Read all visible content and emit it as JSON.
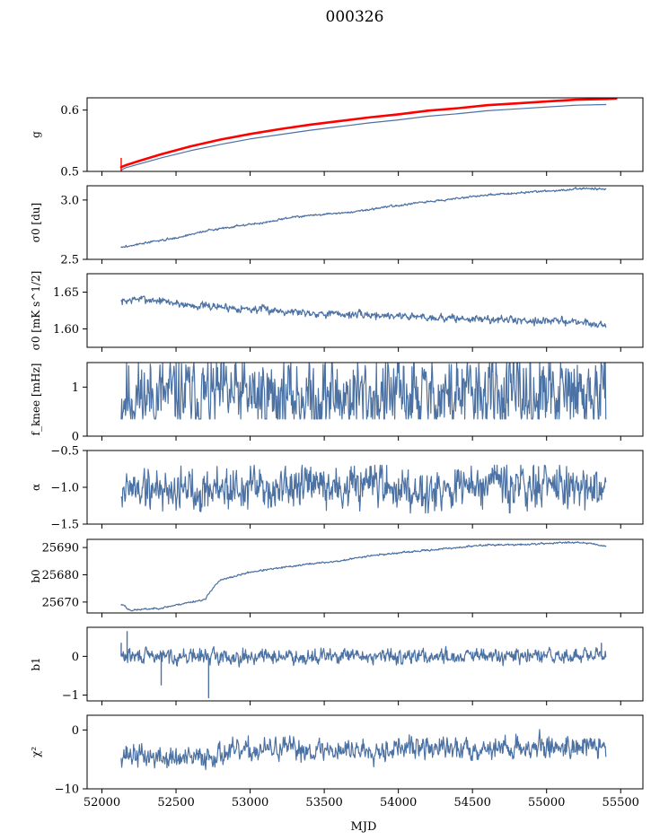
{
  "title": "000326",
  "xlabel": "MJD",
  "colors": {
    "primary": "#4c72a4",
    "highlight": "#ff0000"
  },
  "chart_data": [
    {
      "type": "line",
      "ylabel": "g",
      "xlim": [
        51900,
        55650
      ],
      "ylim": [
        0.5,
        0.62
      ],
      "yticks": [
        0.5,
        0.6
      ],
      "ytick_labels": [
        "0.5",
        "0.6"
      ],
      "xtick_labels_shown": false,
      "series": [
        {
          "name": "g",
          "color": "#4c72a4",
          "width": 1.2,
          "x": [
            52130,
            52160,
            52250,
            52400,
            52600,
            52800,
            53000,
            53200,
            53400,
            53600,
            53800,
            54000,
            54200,
            54400,
            54600,
            54800,
            55000,
            55200,
            55400
          ],
          "y": [
            0.502,
            0.506,
            0.512,
            0.522,
            0.534,
            0.544,
            0.553,
            0.56,
            0.567,
            0.573,
            0.579,
            0.584,
            0.59,
            0.594,
            0.599,
            0.602,
            0.605,
            0.608,
            0.609
          ]
        },
        {
          "name": "g-model",
          "color": "#ff0000",
          "width": 2.6,
          "x": [
            52130,
            52160,
            52250,
            52400,
            52600,
            52800,
            53000,
            53200,
            53400,
            53600,
            53800,
            54000,
            54200,
            54400,
            54600,
            54800,
            55000,
            55200,
            55400,
            55470
          ],
          "y": [
            0.507,
            0.51,
            0.517,
            0.528,
            0.541,
            0.552,
            0.561,
            0.569,
            0.576,
            0.582,
            0.588,
            0.593,
            0.599,
            0.603,
            0.608,
            0.611,
            0.614,
            0.617,
            0.618,
            0.619
          ]
        }
      ],
      "spikes": [
        {
          "x": 52130,
          "y0": 0.5,
          "y1": 0.522,
          "color": "#ff0000"
        }
      ]
    },
    {
      "type": "line",
      "ylabel": "σ0 [du]",
      "xlim": [
        51900,
        55650
      ],
      "ylim": [
        2.5,
        3.12
      ],
      "yticks": [
        2.5,
        3.0
      ],
      "ytick_labels": [
        "2.5",
        "3.0"
      ],
      "xtick_labels_shown": false,
      "series": [
        {
          "name": "sigma0_du",
          "color": "#4c72a4",
          "width": 1.2,
          "noise": 0.004,
          "seed": 3,
          "x": [
            52130,
            52300,
            52500,
            52700,
            52900,
            53100,
            53300,
            53500,
            53700,
            53900,
            54100,
            54300,
            54500,
            54700,
            54900,
            55100,
            55250,
            55400
          ],
          "y": [
            2.6,
            2.64,
            2.68,
            2.74,
            2.78,
            2.81,
            2.86,
            2.88,
            2.9,
            2.94,
            2.97,
            3.0,
            3.03,
            3.05,
            3.07,
            3.08,
            3.1,
            3.09
          ]
        }
      ]
    },
    {
      "type": "line",
      "ylabel": "σ0 [mK s^1/2]",
      "xlim": [
        51900,
        55650
      ],
      "ylim": [
        1.575,
        1.675
      ],
      "yticks": [
        1.6,
        1.65
      ],
      "ytick_labels": [
        "1.60",
        "1.65"
      ],
      "xtick_labels_shown": false,
      "series": [
        {
          "name": "sigma0_mK",
          "color": "#4c72a4",
          "width": 1.2,
          "noise": 0.0025,
          "seed": 7,
          "x": [
            52130,
            52250,
            52400,
            52600,
            52800,
            53000,
            53200,
            53400,
            53600,
            53800,
            54000,
            54200,
            54400,
            54600,
            54800,
            55000,
            55200,
            55400
          ],
          "y": [
            1.637,
            1.641,
            1.638,
            1.632,
            1.63,
            1.627,
            1.625,
            1.622,
            1.62,
            1.619,
            1.618,
            1.616,
            1.614,
            1.613,
            1.612,
            1.611,
            1.61,
            1.605
          ]
        }
      ]
    },
    {
      "type": "line",
      "ylabel": "f_knee [mHz]",
      "xlim": [
        51900,
        55650
      ],
      "ylim": [
        0,
        1.5
      ],
      "yticks": [
        0,
        1
      ],
      "ytick_labels": [
        "0",
        "1"
      ],
      "xtick_labels_shown": false,
      "series": [
        {
          "name": "fknee",
          "color": "#4c72a4",
          "width": 1.2,
          "noise": 0.38,
          "seed": 11,
          "noise_lo": 0.35,
          "noise_hi": 1.5,
          "x": [
            52130,
            55400
          ],
          "y": [
            0.82,
            0.82
          ]
        }
      ]
    },
    {
      "type": "line",
      "ylabel": "α",
      "xlim": [
        51900,
        55650
      ],
      "ylim": [
        -1.5,
        -0.5
      ],
      "yticks": [
        -1.5,
        -1.0,
        -0.5
      ],
      "ytick_labels": [
        "−1.5",
        "−1.0",
        "−0.5"
      ],
      "xtick_labels_shown": false,
      "series": [
        {
          "name": "alpha",
          "color": "#4c72a4",
          "width": 1.2,
          "noise": 0.14,
          "seed": 19,
          "noise_lo": -1.35,
          "noise_hi": -0.7,
          "x": [
            52130,
            55400
          ],
          "y": [
            -1.02,
            -1.0
          ]
        }
      ]
    },
    {
      "type": "line",
      "ylabel": "b0",
      "xlim": [
        51900,
        55650
      ],
      "ylim": [
        25666,
        25693
      ],
      "yticks": [
        25670,
        25680,
        25690
      ],
      "ytick_labels": [
        "25670",
        "25680",
        "25690"
      ],
      "xtick_labels_shown": false,
      "series": [
        {
          "name": "b0",
          "color": "#4c72a4",
          "width": 1.2,
          "noise": 0.15,
          "seed": 23,
          "x": [
            52130,
            52150,
            52170,
            52200,
            52400,
            52600,
            52700,
            52720,
            52760,
            52800,
            53000,
            53200,
            53400,
            53600,
            53800,
            54000,
            54200,
            54400,
            54600,
            54800,
            55000,
            55200,
            55300,
            55400
          ],
          "y": [
            25669,
            25669,
            25667.5,
            25667,
            25667.8,
            25670,
            25671,
            25673,
            25676,
            25678,
            25681,
            25682.5,
            25684,
            25685,
            25687,
            25688,
            25689,
            25690,
            25691,
            25691,
            25691.5,
            25692,
            25691.5,
            25690.5
          ]
        }
      ]
    },
    {
      "type": "line",
      "ylabel": "b1",
      "xlim": [
        51900,
        55650
      ],
      "ylim": [
        -1.15,
        0.75
      ],
      "yticks": [
        -1,
        0
      ],
      "ytick_labels": [
        "−1",
        "0"
      ],
      "xtick_labels_shown": false,
      "series": [
        {
          "name": "b1",
          "color": "#4c72a4",
          "width": 1.2,
          "noise": 0.09,
          "seed": 29,
          "noise_lo": -0.4,
          "noise_hi": 0.4,
          "x": [
            52130,
            55400
          ],
          "y": [
            0.0,
            0.0
          ]
        }
      ],
      "spikes": [
        {
          "x": 52130,
          "y0": 0.0,
          "y1": 0.35,
          "color": "#4c72a4"
        },
        {
          "x": 52170,
          "y0": 0.0,
          "y1": 0.65,
          "color": "#4c72a4"
        },
        {
          "x": 52400,
          "y0": 0.0,
          "y1": -0.75,
          "color": "#4c72a4"
        },
        {
          "x": 52720,
          "y0": 0.0,
          "y1": -1.08,
          "color": "#4c72a4"
        },
        {
          "x": 55370,
          "y0": 0.0,
          "y1": 0.35,
          "color": "#4c72a4"
        }
      ]
    },
    {
      "type": "line",
      "ylabel": "χ²",
      "xlim": [
        51900,
        55650
      ],
      "ylim": [
        -10,
        2.5
      ],
      "yticks": [
        -10,
        0
      ],
      "ytick_labels": [
        "−10",
        "0"
      ],
      "xtick_labels_shown": true,
      "xticks": [
        52000,
        52500,
        53000,
        53500,
        54000,
        54500,
        55000,
        55500
      ],
      "xtick_labels": [
        "52000",
        "52500",
        "53000",
        "53500",
        "54000",
        "54500",
        "55000",
        "55500"
      ],
      "series": [
        {
          "name": "chi2",
          "color": "#4c72a4",
          "width": 1.2,
          "noise": 0.9,
          "seed": 37,
          "noise_lo": -7.5,
          "noise_hi": 0.5,
          "x": [
            52130,
            52400,
            52600,
            52800,
            53000,
            53200,
            53500,
            53800,
            54100,
            54400,
            54700,
            55000,
            55200,
            55400
          ],
          "y": [
            -4.0,
            -4.8,
            -5.0,
            -4.0,
            -3.6,
            -3.2,
            -3.4,
            -3.3,
            -3.0,
            -3.2,
            -3.0,
            -2.9,
            -2.7,
            -3.0
          ]
        }
      ]
    }
  ]
}
